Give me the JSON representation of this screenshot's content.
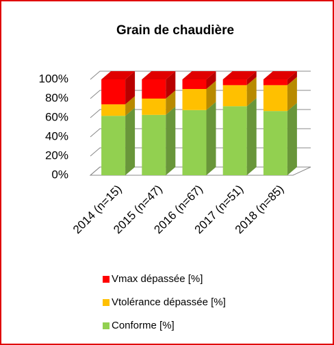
{
  "chart_data": {
    "type": "bar3d_stacked",
    "title": "Grain de chaudière",
    "categories": [
      "2014 (n=15)",
      "2015 (n=47)",
      "2016 (n=67)",
      "2017 (n=51)",
      "2018 (n=85)"
    ],
    "series": [
      {
        "name": "Conforme [%]",
        "color": "#92d050",
        "values": [
          62,
          63,
          68,
          72,
          67
        ]
      },
      {
        "name": "Vtolérance dépassée [%]",
        "color": "#ffc000",
        "values": [
          12,
          17,
          22,
          22,
          27
        ]
      },
      {
        "name": "Vmax dépassée [%]",
        "color": "#ff0000",
        "values": [
          26,
          20,
          10,
          6,
          6
        ]
      }
    ],
    "ylim": [
      0,
      100
    ],
    "yticks": [
      {
        "value": 0,
        "label": "0%"
      },
      {
        "value": 20,
        "label": "20%"
      },
      {
        "value": 40,
        "label": "40%"
      },
      {
        "value": 60,
        "label": "60%"
      },
      {
        "value": 80,
        "label": "80%"
      },
      {
        "value": 100,
        "label": "100%"
      }
    ],
    "grid": true
  }
}
